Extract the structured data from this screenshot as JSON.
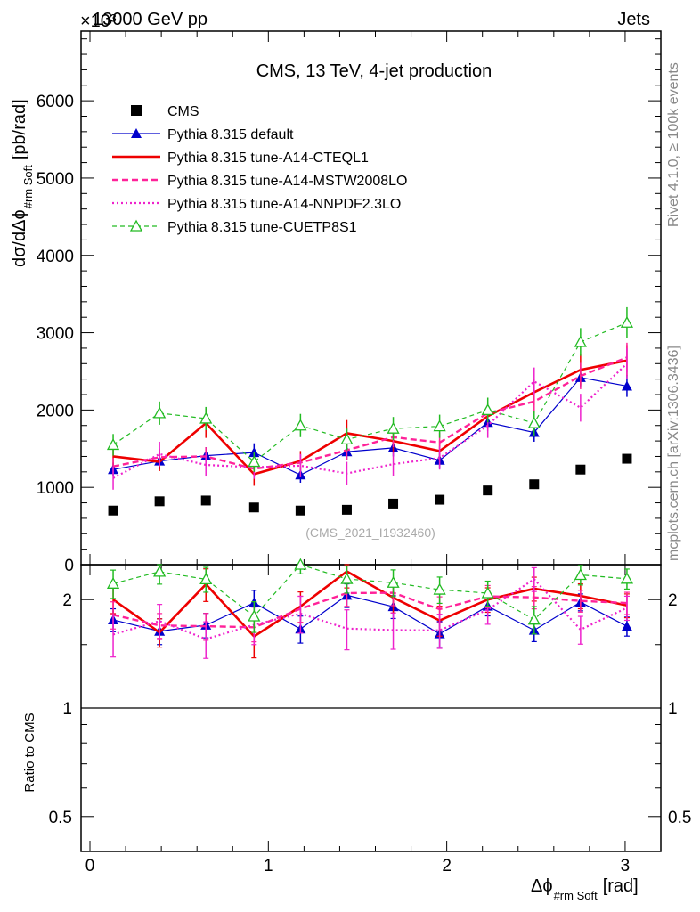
{
  "header": {
    "top_left": "13000 GeV pp",
    "exponent": "×10³",
    "top_right": "Jets"
  },
  "side": {
    "rivet": "Rivet 4.1.0, ≥ 100k events",
    "mcplots": "mcplots.cern.ch [arXiv:1306.3436]"
  },
  "chart_data": {
    "type": "line",
    "title": "CMS, 13 TeV, 4-jet production",
    "watermark": "(CMS_2021_I1932460)",
    "ylabel_main": "dσ/dΔϕ",
    "ylabel_main_sub": "#rm Soft",
    "ylabel_main_unit": "[pb/rad]",
    "ylabel_ratio": "Ratio to CMS",
    "xlabel": "Δϕ",
    "xlabel_sub": "#rm Soft",
    "xlabel_unit": "[rad]",
    "xlim": [
      -0.05,
      3.2
    ],
    "ylim_main": [
      0,
      6900
    ],
    "ylim_ratio": [
      0.4,
      2.5
    ],
    "yscale_ratio": "log",
    "x_ticks": [
      "0",
      "1",
      "2",
      "3"
    ],
    "y_ticks_main": [
      "0",
      "1000",
      "2000",
      "3000",
      "4000",
      "5000",
      "6000"
    ],
    "y_ticks_ratio": [
      "0.5",
      "1",
      "2"
    ],
    "x": [
      0.13,
      0.39,
      0.65,
      0.92,
      1.18,
      1.44,
      1.7,
      1.96,
      2.23,
      2.49,
      2.75,
      3.01
    ],
    "legend_position": "top-left",
    "series": [
      {
        "name": "CMS",
        "color": "#000000",
        "style": "marker-square",
        "values": [
          700,
          820,
          830,
          740,
          700,
          710,
          790,
          840,
          960,
          1040,
          1230,
          1370
        ],
        "errors": [
          15,
          15,
          15,
          15,
          15,
          15,
          15,
          15,
          15,
          15,
          15,
          15
        ]
      },
      {
        "name": "Pythia 8.315 default",
        "color": "#0000cc",
        "style": "solid-triangle",
        "values": [
          1230,
          1340,
          1410,
          1450,
          1160,
          1460,
          1510,
          1350,
          1840,
          1710,
          2420,
          2310
        ],
        "errors": [
          90,
          110,
          110,
          120,
          100,
          110,
          110,
          110,
          110,
          120,
          130,
          140
        ]
      },
      {
        "name": "Pythia 8.315 tune-A14-CTEQL1",
        "color": "#ee0000",
        "style": "solid-thick",
        "values": [
          1400,
          1330,
          1830,
          1170,
          1340,
          1700,
          1600,
          1470,
          1920,
          2230,
          2520,
          2640
        ],
        "errors": [
          120,
          120,
          190,
          150,
          130,
          170,
          150,
          140,
          150,
          170,
          200,
          200
        ]
      },
      {
        "name": "Pythia 8.315 tune-A14-MSTW2008LO",
        "color": "#ff2299",
        "style": "dashed",
        "values": [
          1270,
          1390,
          1400,
          1240,
          1320,
          1480,
          1650,
          1580,
          1960,
          2110,
          2440,
          2680
        ],
        "errors": [
          110,
          110,
          120,
          110,
          110,
          120,
          130,
          130,
          140,
          150,
          170,
          190
        ]
      },
      {
        "name": "Pythia 8.315 tune-A14-NNPDF2.3LO",
        "color": "#ee22cc",
        "style": "dotted",
        "values": [
          1120,
          1430,
          1290,
          1260,
          1280,
          1180,
          1300,
          1380,
          1800,
          2370,
          2030,
          2600
        ],
        "errors": [
          150,
          160,
          150,
          150,
          150,
          150,
          150,
          150,
          160,
          180,
          180,
          200
        ]
      },
      {
        "name": "Pythia 8.315 tune-CUETP8S1",
        "color": "#22bb22",
        "style": "dashed-open-triangle",
        "values": [
          1550,
          1960,
          1890,
          1330,
          1800,
          1620,
          1760,
          1790,
          2000,
          1830,
          2880,
          3130
        ],
        "errors": [
          140,
          150,
          150,
          130,
          150,
          140,
          150,
          150,
          160,
          160,
          180,
          200
        ]
      }
    ]
  }
}
